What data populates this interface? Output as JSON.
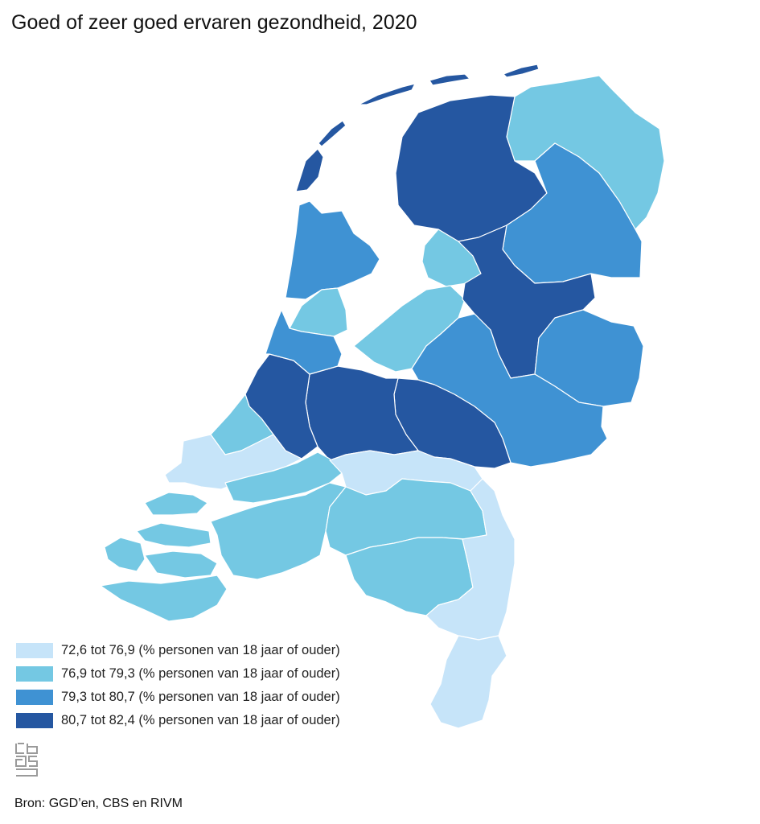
{
  "title": "Goed of zeer goed ervaren gezondheid, 2020",
  "colors": {
    "class1": "#c6e4f9",
    "class2": "#74c8e3",
    "class3": "#3f92d3",
    "class4": "#2557a1"
  },
  "legend": [
    {
      "label": "72,6 tot 76,9 (% personen van 18 jaar of ouder)",
      "color": "#c6e4f9"
    },
    {
      "label": "76,9 tot 79,3 (% personen van 18 jaar of ouder)",
      "color": "#74c8e3"
    },
    {
      "label": "79,3 tot 80,7 (% personen van 18 jaar of ouder)",
      "color": "#3f92d3"
    },
    {
      "label": "80,7 tot 82,4 (% personen van 18 jaar of ouder)",
      "color": "#2557a1"
    }
  ],
  "logo": "cbs-logo-icon",
  "source": "Bron: GGD’en, CBS en RIVM"
}
